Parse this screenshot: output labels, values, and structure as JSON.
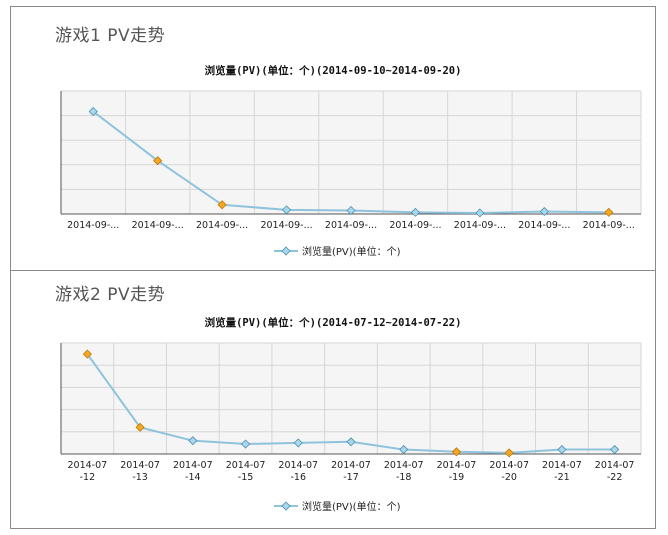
{
  "charts": [
    {
      "panel_title": "游戏1 PV走势",
      "chart_data": {
        "type": "line",
        "title": "浏览量(PV)(单位：个)(2014-09-10~2014-09-20)",
        "categories": [
          "2014-09-...",
          "2014-09-...",
          "2014-09-...",
          "2014-09-...",
          "2014-09-...",
          "2014-09-...",
          "2014-09-...",
          "2014-09-...",
          "2014-09-..."
        ],
        "series": [
          {
            "name": "浏览量(PV)(单位：个)",
            "values": [
              5.0,
              2.6,
              0.45,
              0.2,
              0.17,
              0.08,
              0.05,
              0.12,
              0.08
            ],
            "highlight": [
              false,
              true,
              true,
              false,
              false,
              false,
              false,
              false,
              true
            ]
          }
        ],
        "ylim": [
          0,
          6
        ],
        "grid": true,
        "legend": "bottom-center",
        "colors": {
          "line": "#8ec3dc",
          "marker": "#a9d7ec",
          "highlight": "#f5a623",
          "plot_bg": "#f5f5f5",
          "grid": "#d6d6d6"
        }
      }
    },
    {
      "panel_title": "游戏2 PV走势",
      "chart_data": {
        "type": "line",
        "title": "浏览量(PV)(单位：个)(2014-07-12~2014-07-22)",
        "categories": [
          "2014-07\n-12",
          "2014-07\n-13",
          "2014-07\n-14",
          "2014-07\n-15",
          "2014-07\n-16",
          "2014-07\n-17",
          "2014-07\n-18",
          "2014-07\n-19",
          "2014-07\n-20",
          "2014-07\n-21",
          "2014-07\n-22"
        ],
        "series": [
          {
            "name": "浏览量(PV)(单位：个)",
            "values": [
              4.5,
              1.2,
              0.6,
              0.45,
              0.5,
              0.55,
              0.2,
              0.1,
              0.05,
              0.2,
              0.2
            ],
            "highlight": [
              true,
              true,
              false,
              false,
              false,
              false,
              false,
              true,
              true,
              false,
              false
            ]
          }
        ],
        "ylim": [
          0,
          5
        ],
        "grid": true,
        "legend": "bottom-center",
        "colors": {
          "line": "#8ec3dc",
          "marker": "#a9d7ec",
          "highlight": "#f5a623",
          "plot_bg": "#f5f5f5",
          "grid": "#d6d6d6"
        }
      }
    }
  ]
}
